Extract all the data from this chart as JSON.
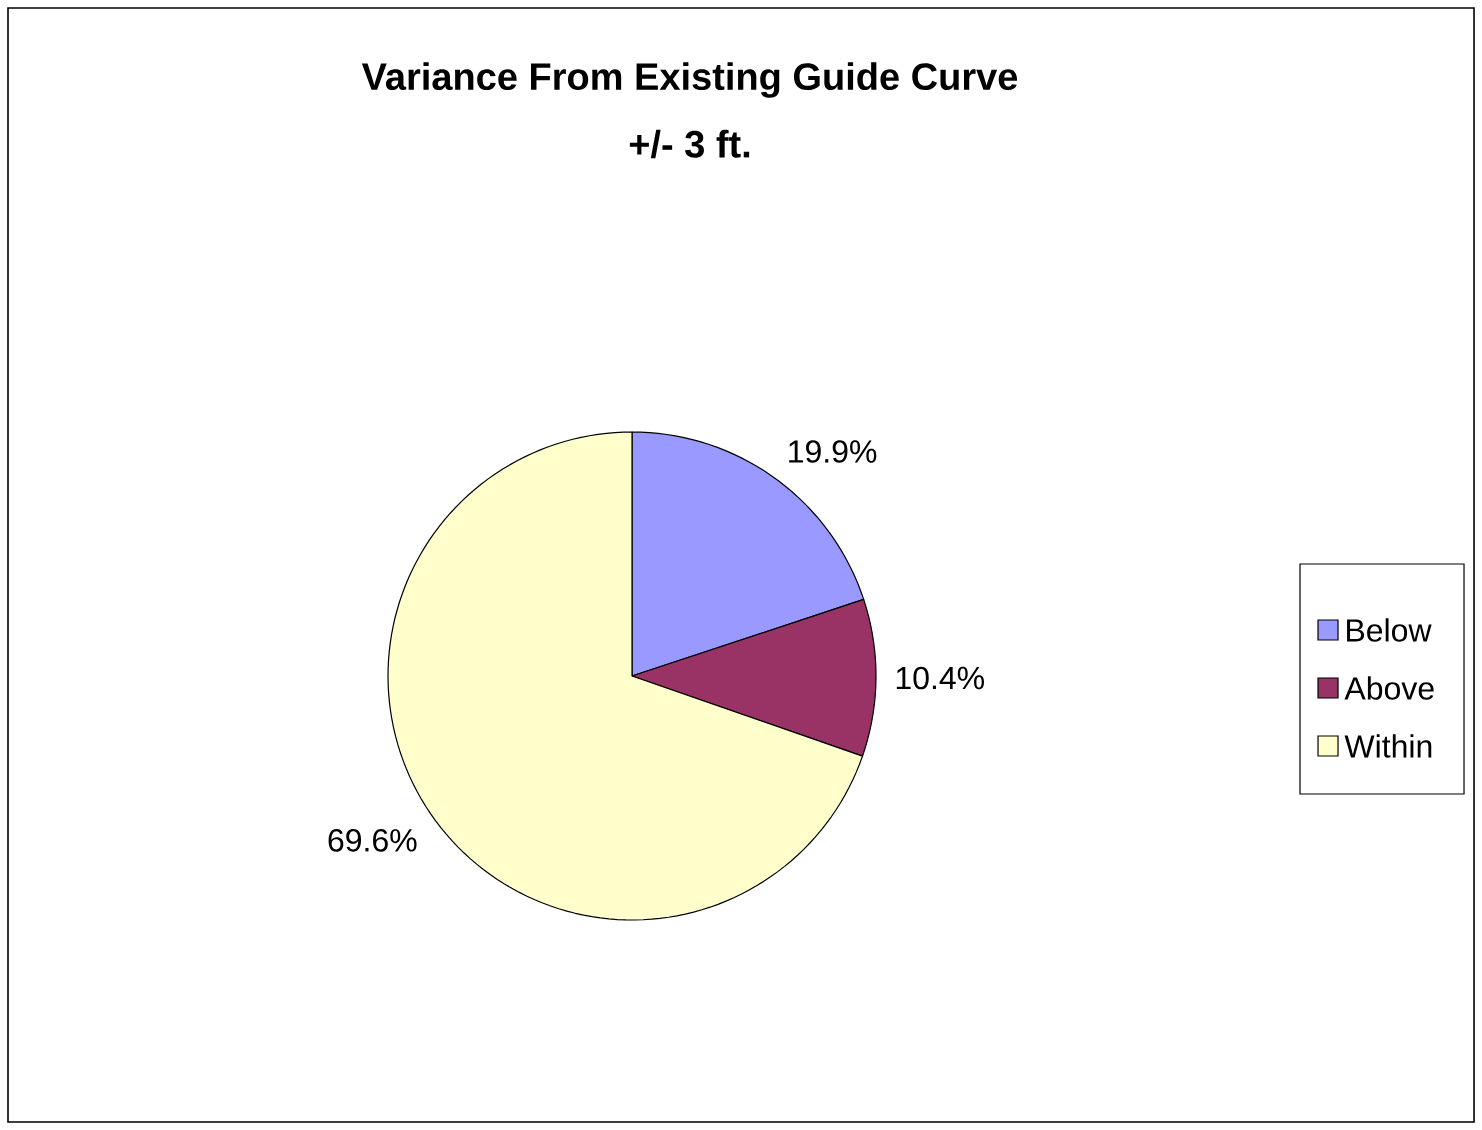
{
  "chart_data": {
    "type": "pie",
    "title": "Variance From Existing Guide Curve",
    "subtitle": "+/- 3 ft.",
    "categories": [
      "Below",
      "Above",
      "Within"
    ],
    "values": [
      19.9,
      10.4,
      69.6
    ],
    "colors": [
      "#9999ff",
      "#993366",
      "#ffffcc"
    ],
    "value_labels": [
      "19.9%",
      "10.4%",
      "69.6%"
    ],
    "legend": "right"
  }
}
